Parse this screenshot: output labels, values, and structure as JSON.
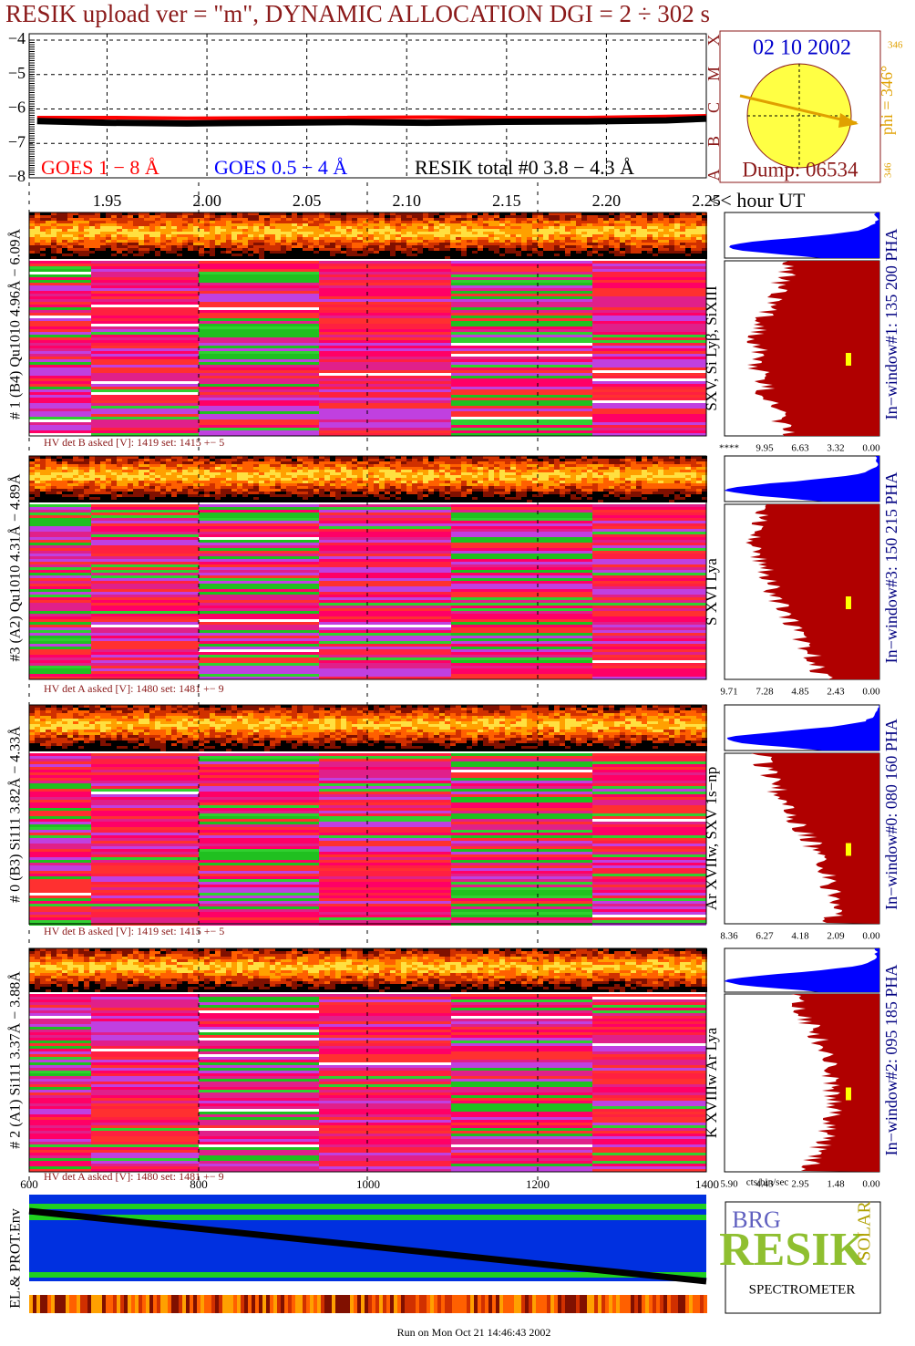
{
  "chart_data": {
    "type": "line",
    "title": "RESIK upload ver = \"m\", DYNAMIC ALLOCATION  DGI =   2 ÷ 302 s",
    "x_label": "<< hour UT",
    "xlim": [
      1.911,
      2.25
    ],
    "xticks": [
      1.95,
      {
        "value": 2.0,
        "label": "2.00"
      },
      2.05,
      {
        "value": 2.1,
        "label": "2.10"
      },
      2.15,
      {
        "value": 2.2,
        "label": "2.20"
      },
      2.25
    ],
    "ylim": [
      -3.8,
      -8
    ],
    "yticks": [
      {
        "value": -4,
        "label": "−4"
      },
      {
        "value": -5,
        "label": "−5"
      },
      {
        "value": -6,
        "label": "−6"
      },
      {
        "value": -7,
        "label": "−7"
      },
      {
        "value": -8,
        "label": "−8"
      }
    ],
    "grid": true,
    "x": [
      1.915,
      1.95,
      1.99,
      2.03,
      2.07,
      2.11,
      2.15,
      2.19,
      2.23,
      2.25
    ],
    "series": [
      {
        "name": "GOES 1 − 8 Å",
        "color": "#ff0000",
        "values": [
          -6.25,
          -6.25,
          -6.27,
          -6.26,
          -6.25,
          -6.24,
          -6.25,
          -6.25,
          -6.22,
          -6.2
        ]
      },
      {
        "name": "GOES 0.5 − 4 Å",
        "color": "#0000ff",
        "values": [
          null,
          null,
          null,
          null,
          null,
          null,
          null,
          null,
          null,
          null
        ]
      },
      {
        "name": "RESIK total #0  3.8 − 4.3 Å",
        "color": "#000000",
        "values": [
          -6.35,
          -6.4,
          -6.42,
          -6.4,
          -6.38,
          -6.4,
          -6.37,
          -6.36,
          -6.33,
          -6.28
        ]
      }
    ],
    "class_labels": [
      "X",
      "M",
      "C",
      "B",
      "A"
    ]
  },
  "sun": {
    "date": "02 10 2002",
    "dump": "Dump: 06534",
    "phi": "phi = 346°",
    "small_top": "346",
    "small_bottom": "346"
  },
  "panels": [
    {
      "label": "# 1 (B4) Qu1010 4.96Å − 6.09Å",
      "lines": "SXV, Si Lyβ, SiXIII",
      "window": "In−window#1:  135 200 PHA",
      "hv": "HV det B asked [V]:  1419 set:  1415 +−    5",
      "ticks": [
        "****",
        "9.95",
        "6.63",
        "3.32",
        "0.00"
      ]
    },
    {
      "label": "#3 (A2) Qu1010  4.31Å − 4.89Å",
      "lines": "S XVI Lya",
      "window": "In−window#3:  150 215 PHA",
      "hv": "HV det A asked [V]:  1480 set:  1481 +−    9",
      "ticks": [
        "9.71",
        "7.28",
        "4.85",
        "2.43",
        "0.00"
      ]
    },
    {
      "label": "# 0 (B3) Si111  3.82Å − 4.33Å",
      "lines": "Ar XVIIw,  SXV 1s−np",
      "window": "In−window#0:  080 160 PHA",
      "hv": "HV det B asked [V]:  1419 set:  1415 +−    5",
      "ticks": [
        "8.36",
        "6.27",
        "4.18",
        "2.09",
        "0.00"
      ]
    },
    {
      "label": "# 2 (A1) Si111  3.37Å − 3.88Å",
      "lines": "K XVIIIw  Ar Lya",
      "window": "In−window#2:  095 185 PHA",
      "hv": "HV det A asked [V]:  1480 set:  1481 +−    9",
      "ticks": [
        "5.90",
        "4.43",
        "2.95",
        "1.48",
        "0.00"
      ]
    }
  ],
  "hist_unit": "cts/bin/sec",
  "channel_ticks": [
    "600",
    "800",
    "1000",
    "1200",
    "1400"
  ],
  "env_label": "EL.& PROT.Env",
  "logo": {
    "a": "BRG",
    "b": "RESIK",
    "c": "SOLAR",
    "d": "SPECTROMETER"
  },
  "footer": "Run on Mon Oct 21 14:46:43 2002"
}
